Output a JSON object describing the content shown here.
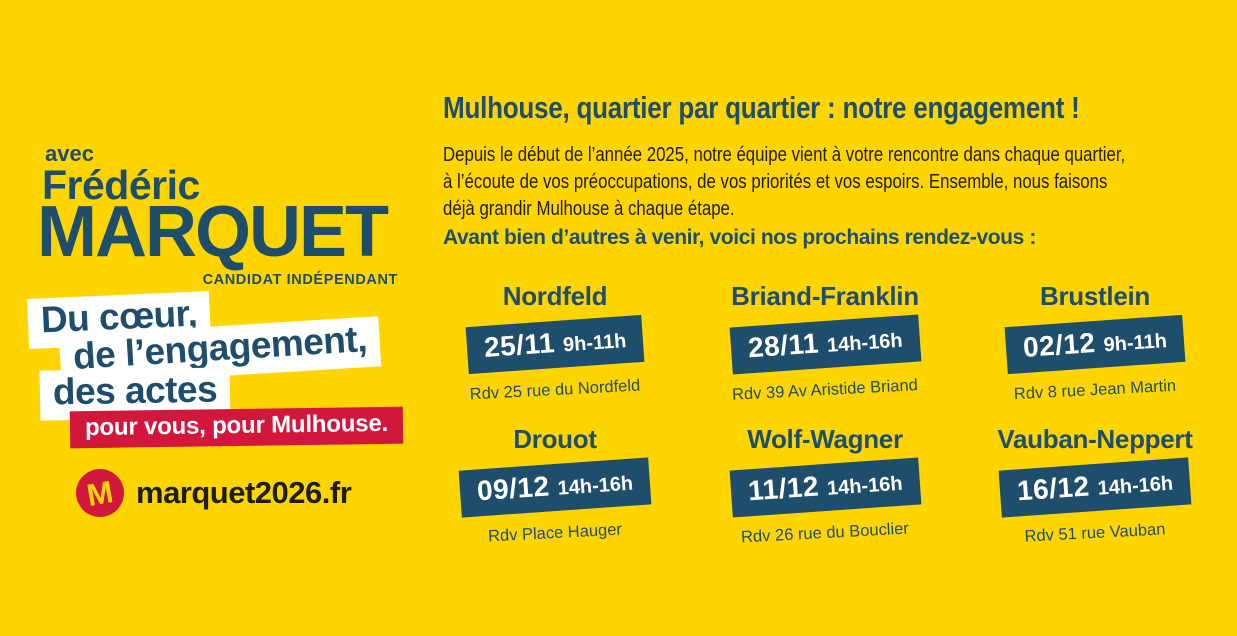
{
  "colors": {
    "background": "#FFD500",
    "navy": "#1E4E6B",
    "red": "#D2173C",
    "dark_text": "#1D1D1B",
    "white": "#FFFFFF"
  },
  "left": {
    "avec": "avec",
    "first_name": "Frédéric",
    "last_name": "MARQUET",
    "subtitle": "CANDIDAT INDÉPENDANT",
    "slogan_line_1": "Du cœur,",
    "slogan_line_2": "de l’engagement,",
    "slogan_line_3": "des actes",
    "tagline": "pour vous, pour Mulhouse.",
    "logo_letter": "M",
    "website": "marquet2026.fr"
  },
  "right": {
    "title": "Mulhouse, quartier par quartier : notre engagement !",
    "intro_lines": [
      "Depuis le début de l’année 2025, notre équipe vient à votre rencontre dans chaque quartier,",
      "à l’écoute de vos préoccupations, de vos priorités et vos espoirs. Ensemble, nous faisons",
      "déjà grandir Mulhouse à chaque étape."
    ],
    "subheading": "Avant bien d’autres à venir, voici nos prochains rendez-vous :",
    "events": [
      {
        "district": "Nordfeld",
        "date": "25/11",
        "time": "9h-11h",
        "address": "Rdv 25 rue du Nordfeld"
      },
      {
        "district": "Briand-Franklin",
        "date": "28/11",
        "time": "14h-16h",
        "address": "Rdv 39 Av Aristide Briand"
      },
      {
        "district": "Brustlein",
        "date": "02/12",
        "time": "9h-11h",
        "address": "Rdv 8 rue Jean Martin"
      },
      {
        "district": "Drouot",
        "date": "09/12",
        "time": "14h-16h",
        "address": "Rdv Place Hauger"
      },
      {
        "district": "Wolf-Wagner",
        "date": "11/12",
        "time": "14h-16h",
        "address": "Rdv 26 rue du Bouclier"
      },
      {
        "district": "Vauban-Neppert",
        "date": "16/12",
        "time": "14h-16h",
        "address": "Rdv 51 rue Vauban"
      }
    ]
  }
}
